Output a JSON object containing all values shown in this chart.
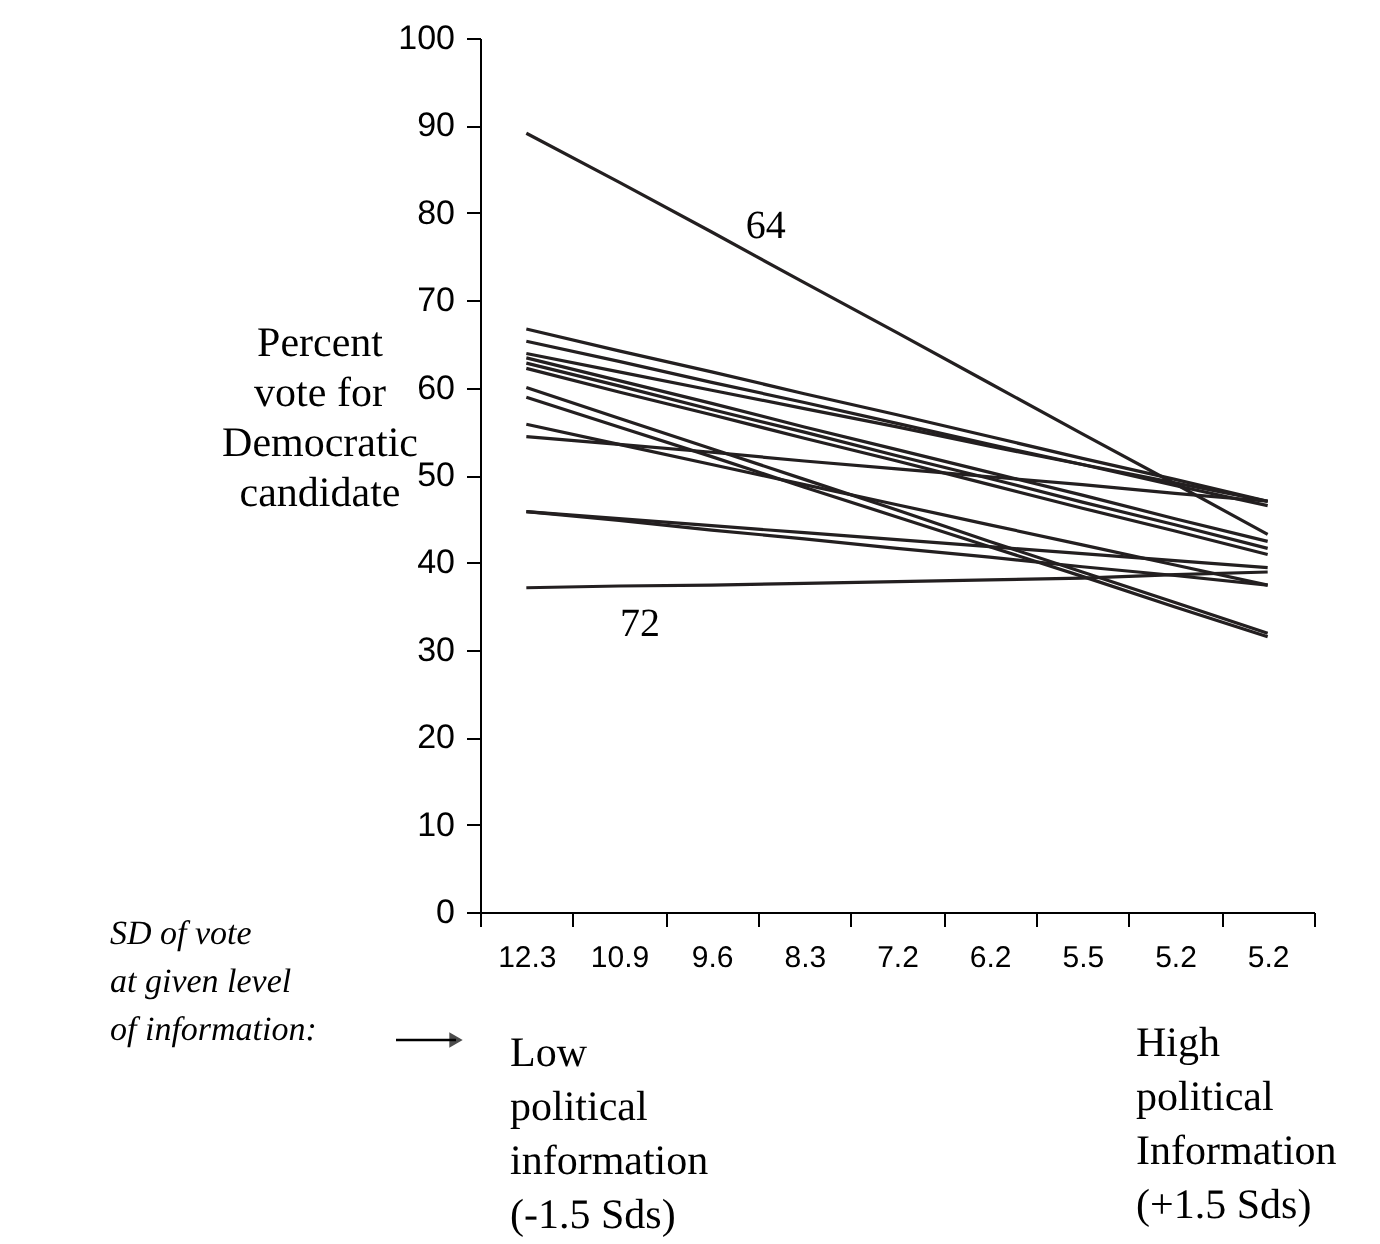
{
  "chart_data": {
    "type": "line",
    "ylabel": "Percent\nvote for\nDemocratic\ncandidate",
    "categories": [
      "12.3",
      "10.9",
      "9.6",
      "8.3",
      "7.2",
      "6.2",
      "5.5",
      "5.2",
      "5.2"
    ],
    "ylim": [
      0,
      100
    ],
    "yticks": [
      0,
      10,
      20,
      30,
      40,
      50,
      60,
      70,
      80,
      90,
      100
    ],
    "grid": false,
    "legend": false,
    "marker": "none",
    "line_style": "solid",
    "series": [
      {
        "color": "#231f20",
        "values": [
          89.1,
          83.5,
          77.8,
          72.0,
          66.3,
          60.5,
          54.7,
          49.0,
          43.2
        ]
      },
      {
        "color": "#231f20",
        "values": [
          66.7,
          64.2,
          61.8,
          59.3,
          56.9,
          54.4,
          51.9,
          49.5,
          47.0
        ]
      },
      {
        "color": "#231f20",
        "values": [
          65.3,
          63.0,
          60.6,
          58.3,
          55.9,
          53.5,
          51.2,
          48.8,
          46.5
        ]
      },
      {
        "color": "#231f20",
        "values": [
          63.9,
          61.8,
          59.7,
          57.6,
          55.5,
          53.3,
          51.2,
          49.1,
          47.0
        ]
      },
      {
        "color": "#231f20",
        "values": [
          63.4,
          60.8,
          58.2,
          55.5,
          52.9,
          50.3,
          47.7,
          45.0,
          42.4
        ]
      },
      {
        "color": "#231f20",
        "values": [
          62.8,
          60.2,
          57.5,
          54.9,
          52.2,
          49.6,
          46.9,
          44.3,
          41.6
        ]
      },
      {
        "color": "#231f20",
        "values": [
          62.2,
          59.5,
          56.9,
          54.2,
          51.6,
          48.9,
          46.2,
          43.6,
          40.9
        ]
      },
      {
        "color": "#231f20",
        "values": [
          60.0,
          56.5,
          53.0,
          49.5,
          46.0,
          42.4,
          38.9,
          35.4,
          31.9
        ]
      },
      {
        "color": "#231f20",
        "values": [
          58.9,
          55.5,
          52.1,
          48.6,
          45.2,
          41.8,
          38.4,
          34.9,
          31.5
        ]
      },
      {
        "color": "#231f20",
        "values": [
          55.8,
          53.5,
          51.2,
          48.9,
          46.6,
          44.3,
          42.0,
          39.7,
          37.4
        ]
      },
      {
        "color": "#231f20",
        "values": [
          54.4,
          53.5,
          52.6,
          51.6,
          50.7,
          49.8,
          48.9,
          47.9,
          47.0
        ]
      },
      {
        "color": "#231f20",
        "values": [
          45.8,
          45.0,
          44.2,
          43.4,
          42.6,
          41.8,
          41.0,
          40.2,
          39.4
        ]
      },
      {
        "color": "#231f20",
        "values": [
          45.8,
          44.8,
          43.7,
          42.7,
          41.6,
          40.6,
          39.5,
          38.5,
          37.4
        ]
      },
      {
        "color": "#231f20",
        "values": [
          37.1,
          37.3,
          37.4,
          37.6,
          37.8,
          38.0,
          38.2,
          38.6,
          38.9
        ]
      }
    ],
    "annotations": [
      {
        "text": "64",
        "x": "9.6",
        "y": 78.5
      },
      "72",
      "SD of vote\nat given level\nof information:",
      "Low\npolitical\ninformation\n(-1.5 Sds)",
      "High\npolitical\nInformation\n(+1.5 Sds)"
    ]
  }
}
